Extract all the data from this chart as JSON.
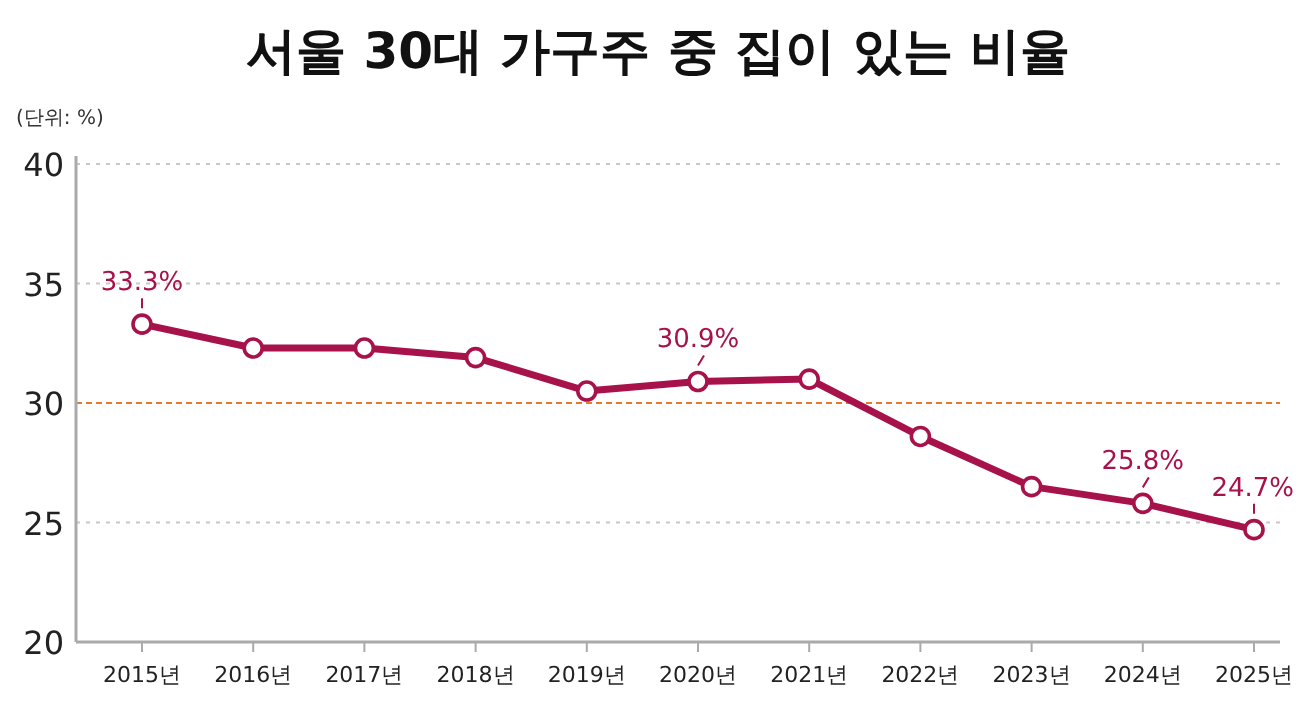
{
  "chart_data": {
    "type": "line",
    "title": "서울 30대 가구주 중 집이 있는 비율",
    "ylabel": "(단위: %)",
    "categories": [
      "2015년",
      "2016년",
      "2017년",
      "2018년",
      "2019년",
      "2020년",
      "2021년",
      "2022년",
      "2023년",
      "2024년",
      "2025년"
    ],
    "series": [
      {
        "color": "#a8124a",
        "values": [
          33.3,
          32.3,
          32.3,
          31.9,
          30.5,
          30.9,
          31.0,
          28.6,
          26.5,
          25.8,
          24.7
        ],
        "value_labels": [
          "33.3%",
          null,
          null,
          null,
          null,
          "30.9%",
          null,
          null,
          null,
          "25.8%",
          "24.7%"
        ]
      }
    ],
    "ylim": [
      20,
      40
    ],
    "yticks": [
      20,
      25,
      30,
      35,
      40
    ],
    "grid": "y",
    "marker": "circle",
    "line_style": "solid",
    "ref_lines": [
      {
        "axis": "y",
        "value": 30,
        "color": "#e8792a",
        "line_style": "dashed"
      }
    ]
  }
}
